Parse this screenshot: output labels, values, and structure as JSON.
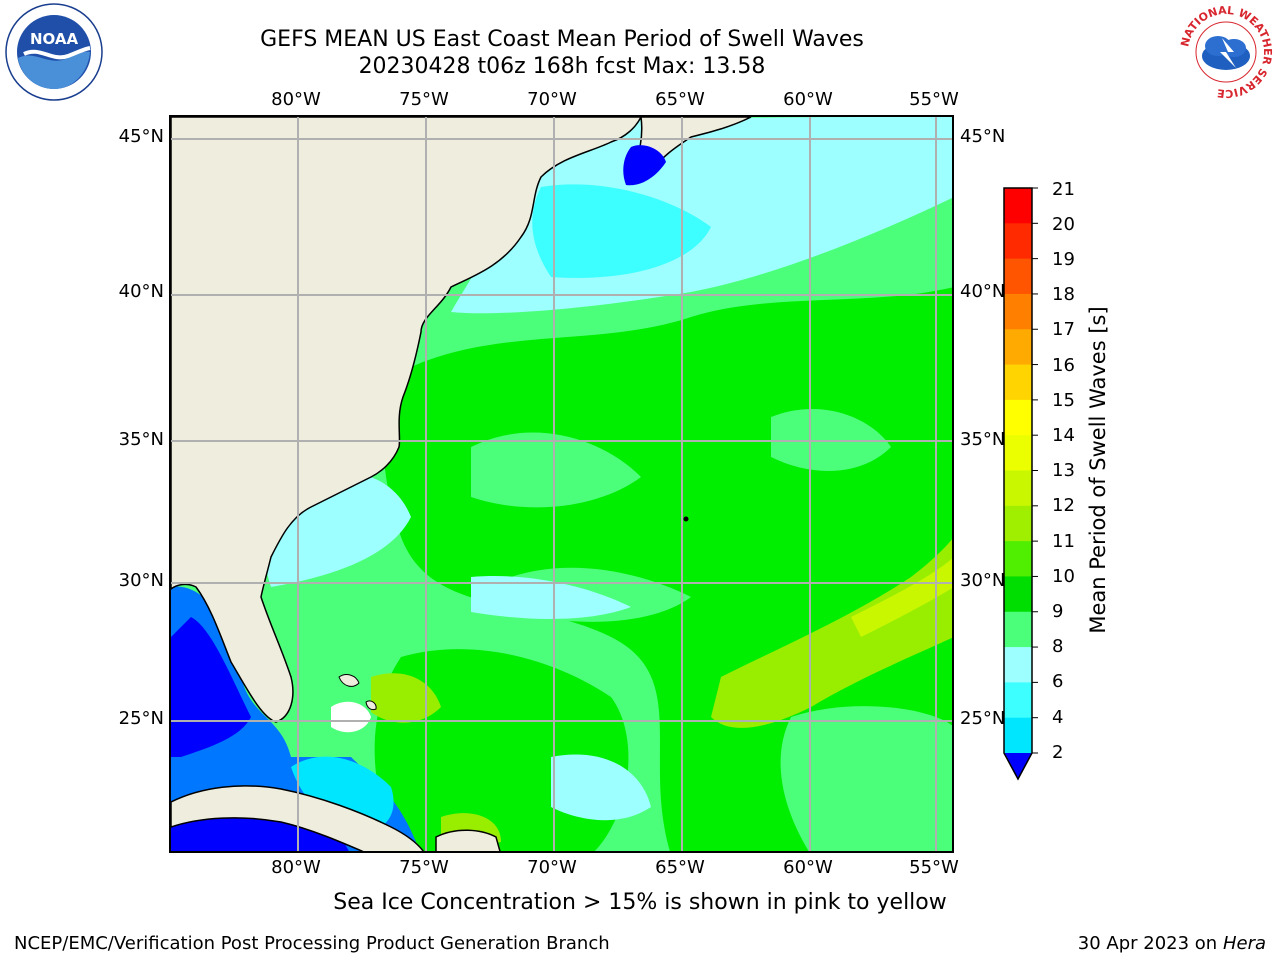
{
  "header": {
    "title_line1": "GEFS MEAN US East Coast Mean Period of Swell Waves",
    "title_line2": "20230428 t06z 168h fcst   Max: 13.58"
  },
  "map": {
    "lon_labels": [
      "80°W",
      "75°W",
      "70°W",
      "65°W",
      "60°W",
      "55°W"
    ],
    "lat_labels": [
      "45°N",
      "40°N",
      "35°N",
      "30°N",
      "25°N"
    ],
    "colors": {
      "land": "#efedde",
      "water_deep_blue": "#0000ff",
      "water_blue": "#0077ff",
      "cyan_light": "#3dffff",
      "light_cyan": "#9dffff",
      "green_light": "#4cff7a",
      "green": "#00ee00",
      "yellow_green": "#99ee00",
      "gridline": "#b0b0b0"
    }
  },
  "colorbar": {
    "title": "Mean Period of Swell Waves [s]",
    "ticks": [
      "21",
      "20",
      "19",
      "18",
      "17",
      "16",
      "15",
      "14",
      "13",
      "12",
      "11",
      "10",
      "9",
      "8",
      "6",
      "4",
      "2"
    ],
    "colors": [
      "#ff0000",
      "#ff2a00",
      "#ff5500",
      "#ff8000",
      "#ffaa00",
      "#ffd400",
      "#ffff00",
      "#ecff00",
      "#c9f700",
      "#a0ee00",
      "#50ee00",
      "#00dd00",
      "#4cff7a",
      "#9dffff",
      "#3dffff",
      "#00e6ff",
      "#0077ff"
    ],
    "under_color": "#0000ff"
  },
  "footer": {
    "note": "Sea Ice Concentration > 15% is shown in pink to yellow",
    "left": "NCEP/EMC/Verification Post Processing Product Generation Branch",
    "right_date": "30 Apr 2023 on ",
    "right_machine": "Hera"
  },
  "logos": {
    "left_text": "NOAA",
    "right_ring_text": "NATIONAL WEATHER SERVICE"
  }
}
